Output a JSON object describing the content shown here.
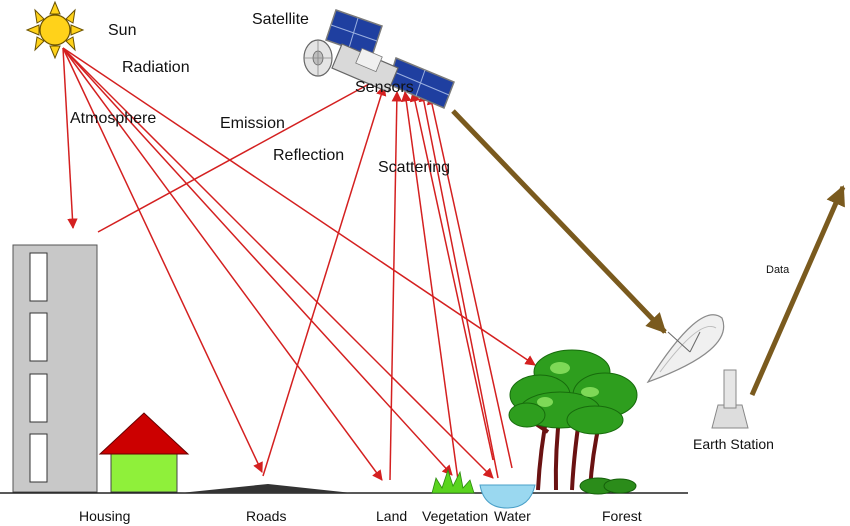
{
  "labels": {
    "sun": "Sun",
    "radiation": "Radiation",
    "atmosphere": "Atmosphere",
    "satellite": "Satellite",
    "sensors": "Sensors",
    "emission": "Emission",
    "reflection": "Reflection",
    "scattering": "Scattering",
    "data": "Data",
    "earth_station": "Earth Station"
  },
  "ground_labels": {
    "housing": "Housing",
    "roads": "Roads",
    "land": "Land",
    "vegetation": "Vegetation",
    "water": "Water",
    "forest": "Forest"
  },
  "colors": {
    "ray": "#d42020",
    "data_link": "#7a5a1e",
    "sun": "#ffd21a",
    "building": "#c8c8c8",
    "roof": "#cc0000",
    "house_wall": "#8ff03a",
    "tree_leaf": "#2e9e1e",
    "trunk": "#8a1e1e",
    "water": "#9ad8f0"
  }
}
